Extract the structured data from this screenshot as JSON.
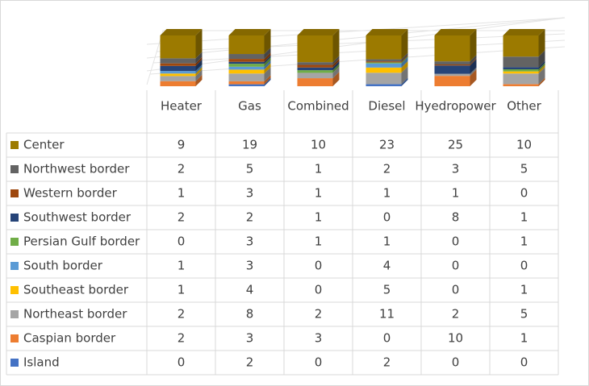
{
  "chart_data": {
    "type": "bar",
    "stacking": "percent",
    "view": "3d",
    "data_table": true,
    "categories": [
      "Heater",
      "Gas",
      "Combined",
      "Diesel",
      "Hyedropower",
      "Other"
    ],
    "series": [
      {
        "name": "Center",
        "color": "#9c7a00",
        "values": [
          9,
          19,
          10,
          23,
          25,
          10
        ]
      },
      {
        "name": "Northwest border",
        "color": "#636363",
        "values": [
          2,
          5,
          1,
          2,
          3,
          5
        ]
      },
      {
        "name": "Western border",
        "color": "#9e480e",
        "values": [
          1,
          3,
          1,
          1,
          1,
          0
        ]
      },
      {
        "name": "Southwest border",
        "color": "#264478",
        "values": [
          2,
          2,
          1,
          0,
          8,
          1
        ]
      },
      {
        "name": "Persian Gulf border",
        "color": "#70ad47",
        "values": [
          0,
          3,
          1,
          1,
          0,
          1
        ]
      },
      {
        "name": "South border",
        "color": "#5b9bd5",
        "values": [
          1,
          3,
          0,
          4,
          0,
          0
        ]
      },
      {
        "name": "Southeast border",
        "color": "#ffc000",
        "values": [
          1,
          4,
          0,
          5,
          0,
          1
        ]
      },
      {
        "name": "Northeast border",
        "color": "#a5a5a5",
        "values": [
          2,
          8,
          2,
          11,
          2,
          5
        ]
      },
      {
        "name": "Caspian border",
        "color": "#ed7d31",
        "values": [
          2,
          3,
          3,
          0,
          10,
          1
        ]
      },
      {
        "name": "Island",
        "color": "#4472c4",
        "values": [
          0,
          2,
          0,
          2,
          0,
          0
        ]
      }
    ]
  }
}
